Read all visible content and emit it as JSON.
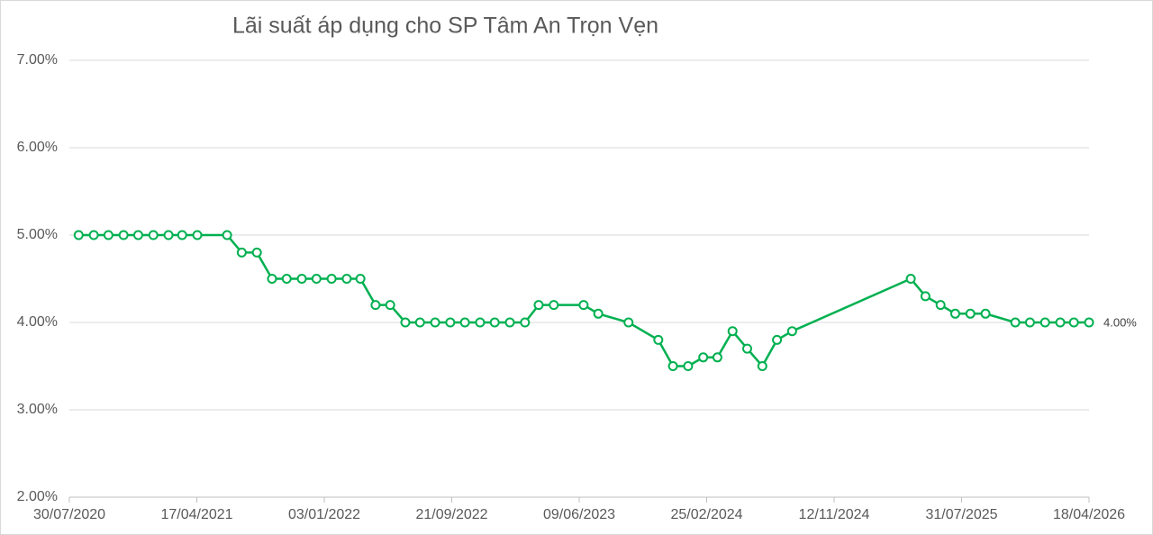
{
  "chart_data": {
    "type": "line",
    "title": "Lãi suất áp dụng cho SP Tâm An Trọn Vẹn",
    "x": [
      "2020-08-18",
      "2020-09-18",
      "2020-10-18",
      "2020-11-18",
      "2020-12-18",
      "2021-01-18",
      "2021-02-18",
      "2021-03-18",
      "2021-04-18",
      "2021-06-18",
      "2021-07-18",
      "2021-08-18",
      "2021-09-18",
      "2021-10-18",
      "2021-11-18",
      "2021-12-18",
      "2022-01-18",
      "2022-02-18",
      "2022-03-18",
      "2022-04-18",
      "2022-05-18",
      "2022-06-18",
      "2022-07-18",
      "2022-08-18",
      "2022-09-18",
      "2022-10-18",
      "2022-11-18",
      "2022-12-18",
      "2023-01-18",
      "2023-02-18",
      "2023-03-18",
      "2023-04-18",
      "2023-06-18",
      "2023-07-18",
      "2023-09-18",
      "2023-11-18",
      "2023-12-18",
      "2024-01-18",
      "2024-02-18",
      "2024-03-18",
      "2024-04-18",
      "2024-05-18",
      "2024-06-18",
      "2024-07-18",
      "2024-08-18",
      "2025-04-18",
      "2025-05-18",
      "2025-06-18",
      "2025-07-18",
      "2025-08-18",
      "2025-09-18",
      "2025-11-18",
      "2025-12-18",
      "2026-01-18",
      "2026-02-18",
      "2026-03-18",
      "2026-04-18"
    ],
    "series": [
      {
        "color": "#00b050",
        "values": [
          5.0,
          5.0,
          5.0,
          5.0,
          5.0,
          5.0,
          5.0,
          5.0,
          5.0,
          5.0,
          4.8,
          4.8,
          4.5,
          4.5,
          4.5,
          4.5,
          4.5,
          4.5,
          4.5,
          4.2,
          4.2,
          4.0,
          4.0,
          4.0,
          4.0,
          4.0,
          4.0,
          4.0,
          4.0,
          4.0,
          4.2,
          4.2,
          4.2,
          4.1,
          4.0,
          3.8,
          3.5,
          3.5,
          3.6,
          3.6,
          3.9,
          3.7,
          3.5,
          3.8,
          3.9,
          4.5,
          4.3,
          4.2,
          4.1,
          4.1,
          4.1,
          4.0,
          4.0,
          4.0,
          4.0,
          4.0,
          4.0
        ],
        "value_labels": [
          null,
          null,
          null,
          null,
          null,
          null,
          null,
          null,
          null,
          null,
          null,
          null,
          null,
          null,
          null,
          null,
          null,
          null,
          null,
          null,
          null,
          null,
          null,
          null,
          null,
          null,
          null,
          null,
          null,
          null,
          null,
          null,
          null,
          null,
          null,
          null,
          null,
          null,
          null,
          null,
          null,
          null,
          null,
          null,
          null,
          null,
          null,
          null,
          null,
          null,
          null,
          null,
          null,
          null,
          null,
          null,
          "4.00%"
        ]
      }
    ],
    "xlim": [
      "2020-07-30",
      "2026-04-18"
    ],
    "xticks": [
      {
        "value": "2020-07-30",
        "label": "30/07/2020"
      },
      {
        "value": "2021-04-17",
        "label": "17/04/2021"
      },
      {
        "value": "2022-01-03",
        "label": "03/01/2022"
      },
      {
        "value": "2022-09-21",
        "label": "21/09/2022"
      },
      {
        "value": "2023-06-09",
        "label": "09/06/2023"
      },
      {
        "value": "2024-02-25",
        "label": "25/02/2024"
      },
      {
        "value": "2024-11-12",
        "label": "12/11/2024"
      },
      {
        "value": "2025-07-31",
        "label": "31/07/2025"
      },
      {
        "value": "2026-04-18",
        "label": "18/04/2026"
      }
    ],
    "ylim": [
      2,
      7
    ],
    "yticks": [
      {
        "value": 2,
        "label": "2.00%"
      },
      {
        "value": 3,
        "label": "3.00%"
      },
      {
        "value": 4,
        "label": "4.00%"
      },
      {
        "value": 5,
        "label": "5.00%"
      },
      {
        "value": 6,
        "label": "6.00%"
      },
      {
        "value": 7,
        "label": "7.00%"
      }
    ],
    "grid": true
  }
}
